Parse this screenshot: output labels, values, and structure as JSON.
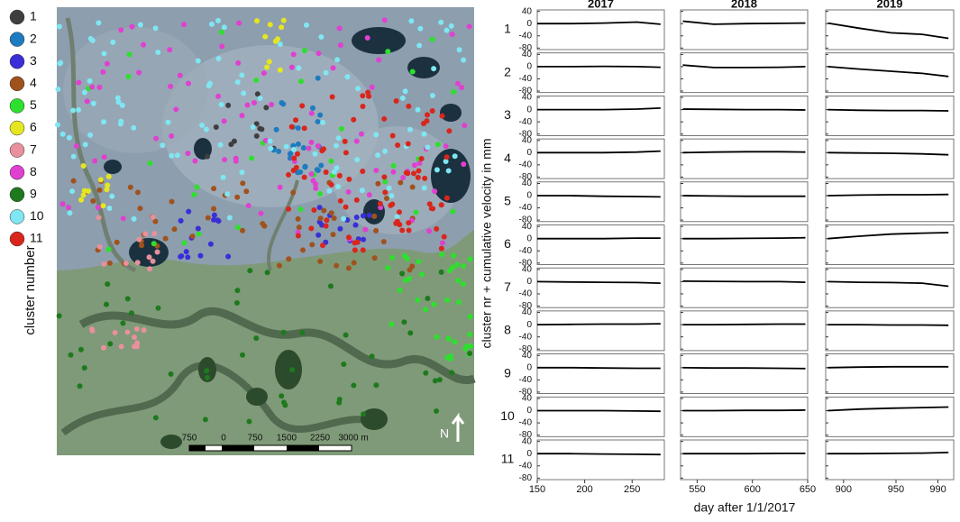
{
  "legend": {
    "title": "cluster number",
    "items": [
      {
        "label": "1",
        "color": "#3f3f3f"
      },
      {
        "label": "2",
        "color": "#1e7bbf"
      },
      {
        "label": "3",
        "color": "#3a2ed8"
      },
      {
        "label": "4",
        "color": "#a0521d"
      },
      {
        "label": "5",
        "color": "#2de02d"
      },
      {
        "label": "6",
        "color": "#e6e620"
      },
      {
        "label": "7",
        "color": "#e8909c"
      },
      {
        "label": "8",
        "color": "#e040d0"
      },
      {
        "label": "9",
        "color": "#1d7a1d"
      },
      {
        "label": "10",
        "color": "#7fe6f2"
      },
      {
        "label": "11",
        "color": "#d9261c"
      }
    ]
  },
  "map": {
    "scale_labels": [
      "750",
      "0",
      "750",
      "1500",
      "2250",
      "3000 m"
    ],
    "north": "N"
  },
  "chart_data": {
    "type": "line",
    "y_label": "cluster nr + cumulative velocity in mm",
    "x_label": "day after 1/1/2017",
    "ylim": [
      -85,
      45
    ],
    "yticks": [
      40,
      0,
      -40,
      -80
    ],
    "columns": [
      {
        "title": "2017",
        "xlim": [
          150,
          284
        ],
        "xticks": [
          150,
          200,
          250
        ],
        "x": [
          150,
          185,
          220,
          255,
          280
        ]
      },
      {
        "title": "2018",
        "xlim": [
          535,
          650
        ],
        "xticks": [
          550,
          600,
          650
        ],
        "x": [
          537,
          565,
          595,
          625,
          648
        ]
      },
      {
        "title": "2019",
        "xlim": [
          883,
          1005
        ],
        "xticks": [
          900,
          950,
          990
        ],
        "x": [
          885,
          915,
          945,
          975,
          1000
        ]
      }
    ],
    "rows": [
      {
        "label": "1",
        "values": [
          [
            0,
            0,
            2,
            5,
            -2
          ],
          [
            8,
            -2,
            0,
            1,
            2
          ],
          [
            2,
            -15,
            -30,
            -35,
            -48
          ]
        ]
      },
      {
        "label": "2",
        "values": [
          [
            0,
            0,
            1,
            0,
            -2
          ],
          [
            5,
            -3,
            -3,
            -2,
            0
          ],
          [
            0,
            -8,
            -15,
            -22,
            -32
          ]
        ]
      },
      {
        "label": "3",
        "values": [
          [
            0,
            0,
            0,
            2,
            5
          ],
          [
            2,
            1,
            0,
            0,
            -1
          ],
          [
            0,
            -2,
            -3,
            -3,
            -4
          ]
        ]
      },
      {
        "label": "4",
        "values": [
          [
            0,
            0,
            0,
            2,
            5
          ],
          [
            0,
            2,
            3,
            3,
            2
          ],
          [
            0,
            -1,
            -2,
            -4,
            -7
          ]
        ]
      },
      {
        "label": "5",
        "values": [
          [
            0,
            0,
            -2,
            -3,
            -4
          ],
          [
            0,
            -1,
            -2,
            -2,
            -2
          ],
          [
            0,
            2,
            3,
            3,
            4
          ]
        ]
      },
      {
        "label": "6",
        "values": [
          [
            0,
            0,
            0,
            2,
            2
          ],
          [
            0,
            0,
            1,
            2,
            3
          ],
          [
            0,
            8,
            15,
            18,
            20
          ]
        ]
      },
      {
        "label": "7",
        "values": [
          [
            0,
            -1,
            -2,
            -3,
            -5
          ],
          [
            2,
            1,
            0,
            0,
            -2
          ],
          [
            0,
            -2,
            -3,
            -5,
            -15
          ]
        ]
      },
      {
        "label": "8",
        "values": [
          [
            0,
            1,
            2,
            2,
            3
          ],
          [
            0,
            0,
            1,
            2,
            2
          ],
          [
            0,
            0,
            -1,
            -1,
            -2
          ]
        ]
      },
      {
        "label": "9",
        "values": [
          [
            0,
            0,
            -1,
            -2,
            -2
          ],
          [
            0,
            -1,
            -1,
            -2,
            -3
          ],
          [
            0,
            2,
            3,
            3,
            3
          ]
        ]
      },
      {
        "label": "10",
        "values": [
          [
            0,
            0,
            0,
            -1,
            -2
          ],
          [
            0,
            0,
            1,
            1,
            2
          ],
          [
            0,
            5,
            8,
            10,
            12
          ]
        ]
      },
      {
        "label": "11",
        "values": [
          [
            0,
            0,
            -1,
            -2,
            -3
          ],
          [
            0,
            0,
            0,
            1,
            1
          ],
          [
            0,
            0,
            1,
            2,
            4
          ]
        ]
      }
    ]
  }
}
